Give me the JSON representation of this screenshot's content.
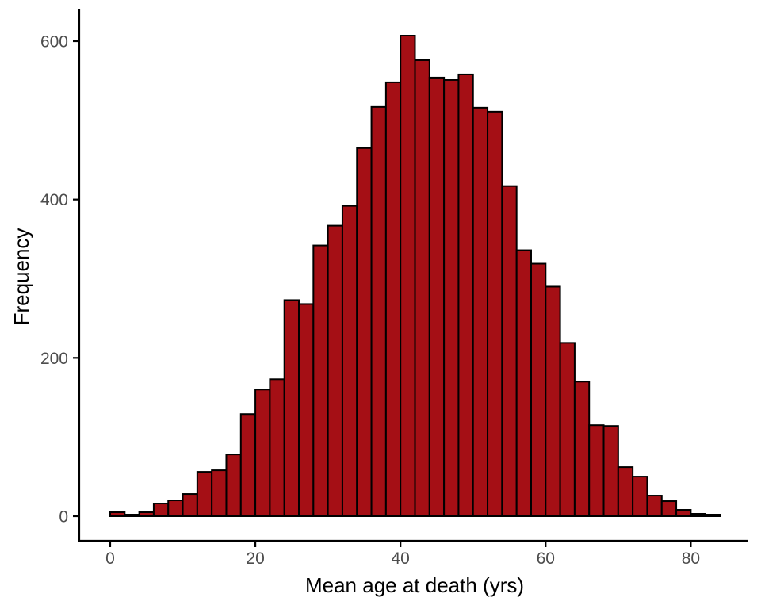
{
  "chart_data": {
    "type": "bar",
    "subtype": "histogram",
    "title": "",
    "xlabel": "Mean age at death (yrs)",
    "ylabel": "Frequency",
    "bin_width": 2,
    "bin_edges": [
      0,
      2,
      4,
      6,
      8,
      10,
      12,
      14,
      16,
      18,
      20,
      22,
      24,
      26,
      28,
      30,
      32,
      34,
      36,
      38,
      40,
      42,
      44,
      46,
      48,
      50,
      52,
      54,
      56,
      58,
      60,
      62,
      64,
      66,
      68,
      70,
      72,
      74,
      76,
      78,
      80,
      82,
      84
    ],
    "values": [
      5,
      2,
      5,
      16,
      20,
      28,
      56,
      58,
      78,
      129,
      160,
      173,
      273,
      268,
      342,
      367,
      392,
      465,
      517,
      548,
      607,
      576,
      554,
      551,
      558,
      516,
      511,
      417,
      336,
      319,
      290,
      219,
      170,
      115,
      114,
      62,
      50,
      26,
      19,
      8,
      3,
      2
    ],
    "x_ticks": [
      0,
      20,
      40,
      60,
      80
    ],
    "y_ticks": [
      0,
      200,
      400,
      600
    ],
    "xlim": [
      0,
      84
    ],
    "ylim": [
      0,
      620
    ],
    "grid": "off",
    "legend": "none",
    "colors": {
      "bar_fill": "#A50F15",
      "bar_stroke": "#000000",
      "axis_line": "#000000",
      "tick_mark": "#000000",
      "tick_label": "#4D4D4D",
      "axis_title": "#000000",
      "background": "#ffffff"
    }
  }
}
